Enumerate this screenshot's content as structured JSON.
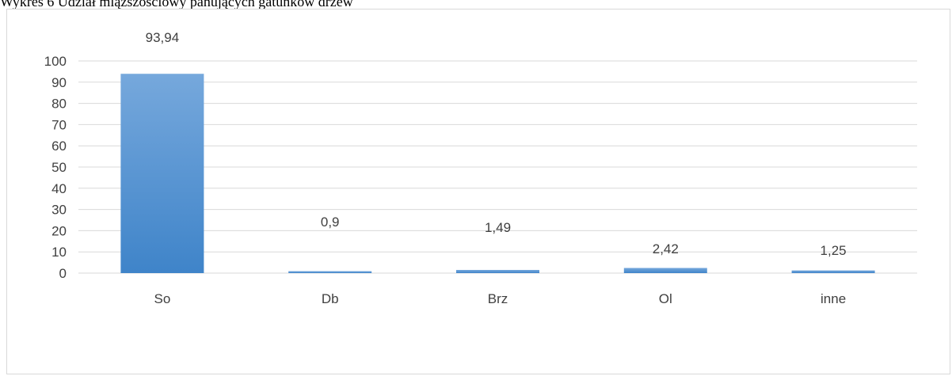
{
  "caption": "Wykres 6 Udział miąższościowy panujących gatunków drzew",
  "chart_data": {
    "type": "bar",
    "title": "",
    "xlabel": "",
    "ylabel": "",
    "categories": [
      "So",
      "Db",
      "Brz",
      "Ol",
      "inne"
    ],
    "values": [
      93.94,
      0.9,
      1.49,
      2.42,
      1.25
    ],
    "data_labels": [
      "93,94",
      "0,9",
      "1,49",
      "2,42",
      "1,25"
    ],
    "ylim": [
      0,
      100
    ],
    "yticks": [
      0,
      10,
      20,
      30,
      40,
      50,
      60,
      70,
      80,
      90,
      100
    ],
    "grid": true,
    "legend": "none",
    "bar_color_top": "#76a8dc",
    "bar_color_bottom": "#3f84c9",
    "grid_color": "#d9d9d9"
  }
}
